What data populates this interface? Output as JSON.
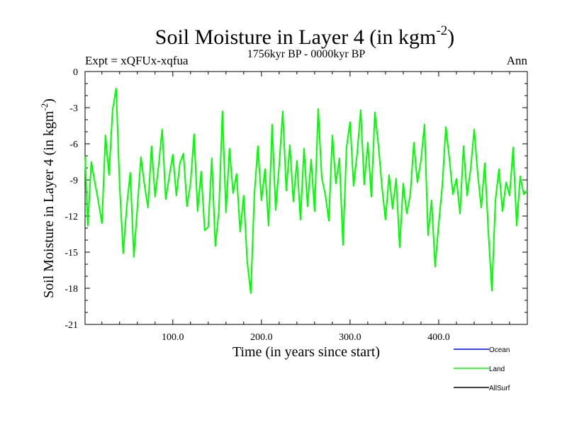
{
  "chart_data": {
    "type": "line",
    "title": "Soil Moisture in Layer 4 (in kgm",
    "title_superscript": "-2",
    "title_close": ")",
    "subtitle_left": "Expt = xQFUx-xqfua",
    "subtitle_center": "1756kyr BP - 0000kyr BP",
    "subtitle_right": "Ann",
    "xlabel": "Time (in years since start)",
    "ylabel": "Soil Moisture in Layer 4 (in kgm",
    "ylabel_superscript": "-2",
    "ylabel_close": ")",
    "xlim": [
      1,
      500
    ],
    "ylim": [
      -21,
      0
    ],
    "x_ticks": [
      100,
      200,
      300,
      400
    ],
    "x_tick_labels": [
      "100.0",
      "200.0",
      "300.0",
      "400.0"
    ],
    "y_ticks": [
      0,
      -3,
      -6,
      -9,
      -12,
      -15,
      -18,
      -21
    ],
    "y_tick_labels": [
      "0",
      "-3",
      "-6",
      "-9",
      "-12",
      "-15",
      "-18",
      "-21"
    ],
    "legend_position": "bottom-right, below plot",
    "series": [
      {
        "name": "Ocean",
        "color": "#0000ff",
        "x": [],
        "values": []
      },
      {
        "name": "Land",
        "color": "#00ff00",
        "x": [
          1,
          4,
          8,
          12,
          16,
          20,
          24,
          28,
          32,
          36,
          40,
          44,
          48,
          52,
          56,
          60,
          64,
          68,
          72,
          76,
          80,
          84,
          88,
          92,
          96,
          100,
          104,
          108,
          112,
          116,
          120,
          124,
          128,
          132,
          136,
          140,
          144,
          148,
          152,
          156,
          160,
          164,
          168,
          172,
          176,
          180,
          184,
          188,
          192,
          196,
          200,
          204,
          208,
          212,
          216,
          220,
          224,
          228,
          232,
          236,
          240,
          244,
          248,
          252,
          256,
          260,
          264,
          268,
          272,
          276,
          280,
          284,
          288,
          292,
          296,
          300,
          304,
          308,
          312,
          316,
          320,
          324,
          328,
          332,
          336,
          340,
          344,
          348,
          352,
          356,
          360,
          364,
          368,
          372,
          376,
          380,
          384,
          388,
          392,
          396,
          400,
          404,
          408,
          412,
          416,
          420,
          424,
          428,
          432,
          436,
          440,
          444,
          448,
          452,
          456,
          460,
          464,
          468,
          472,
          476,
          480,
          484,
          488,
          492,
          496,
          500
        ],
        "values": [
          -7,
          -12.8,
          -7.5,
          -9.2,
          -10.8,
          -12.6,
          -5.3,
          -8.6,
          -3.2,
          -1.4,
          -9.5,
          -15.1,
          -11.2,
          -8.4,
          -15.4,
          -11.3,
          -7.1,
          -9.4,
          -11.3,
          -6.2,
          -10.4,
          -7.8,
          -4.8,
          -10.6,
          -8.7,
          -6.9,
          -10.3,
          -7.6,
          -6.8,
          -11.2,
          -9.3,
          -5.2,
          -11.6,
          -8.3,
          -13.2,
          -12.9,
          -7.2,
          -14.5,
          -11.6,
          -3.3,
          -11.7,
          -6.4,
          -10.1,
          -8.5,
          -13.3,
          -10.3,
          -15.8,
          -18.4,
          -10.3,
          -6.2,
          -10.7,
          -8.1,
          -12.8,
          -4.4,
          -11.5,
          -7.8,
          -3.3,
          -9.9,
          -6.1,
          -10.8,
          -7.4,
          -12.3,
          -6.4,
          -11.2,
          -7.3,
          -11.6,
          -3.1,
          -8.8,
          -10.2,
          -12.4,
          -5.3,
          -9.3,
          -7.2,
          -14.4,
          -6.3,
          -4.2,
          -9.5,
          -6.8,
          -3.2,
          -9.4,
          -5.9,
          -10.4,
          -3.4,
          -6.1,
          -9.6,
          -12.3,
          -8.6,
          -11.4,
          -8.9,
          -14.6,
          -9.3,
          -11.8,
          -10.2,
          -5.9,
          -9.2,
          -7.4,
          -4.4,
          -13.6,
          -10.7,
          -16.2,
          -12.7,
          -9.5,
          -4.6,
          -7.2,
          -10.2,
          -8.9,
          -11.8,
          -6.2,
          -10.3,
          -8.1,
          -4.8,
          -8.5,
          -11.3,
          -7.6,
          -13.3,
          -18.2,
          -10.7,
          -8.1,
          -11.6,
          -9.2,
          -10.3,
          -6.3,
          -12.8,
          -8.7,
          -10.2,
          -9.9
        ]
      },
      {
        "name": "AllSurf",
        "color": "#000000",
        "x": [],
        "values": []
      }
    ]
  }
}
